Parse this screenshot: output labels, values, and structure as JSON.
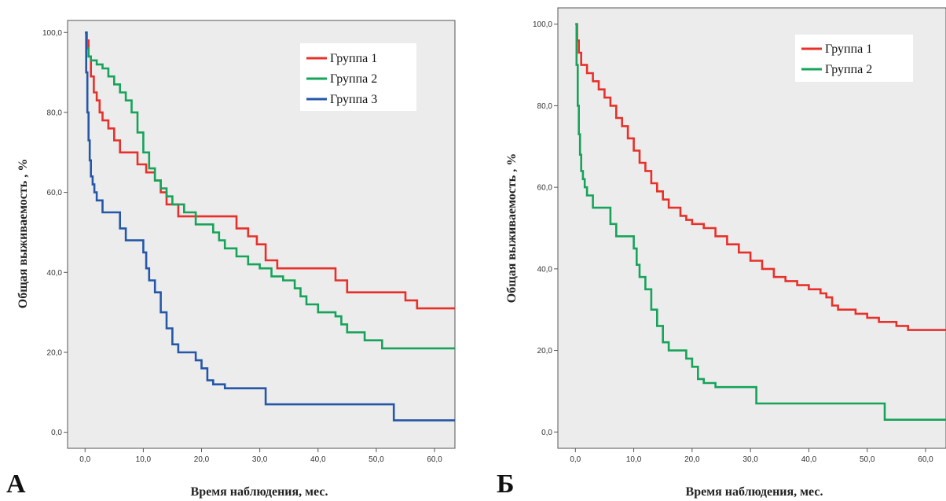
{
  "chart_data": [
    {
      "type": "line",
      "panel_label": "А",
      "xlabel": "Время наблюдения, мес.",
      "ylabel": "Общая выживаемость , %",
      "xlim": [
        -3,
        63.5
      ],
      "ylim": [
        -4,
        103
      ],
      "xticks": [
        0,
        10,
        20,
        30,
        40,
        50,
        60
      ],
      "xtick_labels": [
        "0,0",
        "10,0",
        "20,0",
        "30,0",
        "40,0",
        "50,0",
        "60,0"
      ],
      "yticks": [
        0,
        20,
        40,
        60,
        80,
        100
      ],
      "ytick_labels": [
        "0,0",
        "20,0",
        "40,0",
        "60,0",
        "80,0",
        "100,0"
      ],
      "legend_position": "top-right",
      "series": [
        {
          "name": "Группа 1",
          "color": "#e8302a",
          "x": [
            0,
            0.3,
            0.6,
            1.0,
            1.5,
            2.0,
            2.5,
            3.0,
            4.0,
            5.0,
            6.0,
            9.0,
            10.5,
            12.0,
            13.0,
            14.0,
            16.0,
            20.0,
            25.0,
            26.0,
            28.0,
            29.5,
            31.0,
            33.0,
            43.0,
            45.0,
            55.0,
            57.0,
            63.5
          ],
          "y": [
            100,
            98,
            94,
            89,
            85,
            83,
            80,
            78,
            76,
            73,
            70,
            67,
            65,
            63,
            60,
            57,
            54,
            54,
            54,
            51,
            49,
            47,
            43,
            41,
            38,
            35,
            33,
            31,
            31
          ]
        },
        {
          "name": "Группа 2",
          "color": "#16a35a",
          "x": [
            0,
            0.3,
            0.6,
            1.0,
            2.0,
            3.0,
            4.0,
            5.0,
            6.0,
            7.0,
            8.0,
            9.0,
            10.0,
            11.0,
            12.0,
            13.0,
            14.0,
            15.0,
            17.0,
            19.0,
            22.0,
            23.0,
            24.0,
            26.0,
            28.0,
            30.0,
            32.0,
            34.0,
            36.0,
            37.0,
            38.0,
            40.0,
            43.0,
            44.0,
            45.0,
            48.0,
            51.0,
            53.0,
            63.5
          ],
          "y": [
            100,
            96,
            94,
            93,
            92,
            91,
            89,
            87,
            85,
            83,
            80,
            75,
            70,
            66,
            63,
            61,
            59,
            57,
            55,
            52,
            50,
            48,
            46,
            44,
            42,
            41,
            39,
            38,
            36,
            34,
            32,
            30,
            29,
            27,
            25,
            23,
            21,
            21,
            21
          ]
        },
        {
          "name": "Группа 3",
          "color": "#2457a8",
          "x": [
            0,
            0.2,
            0.4,
            0.6,
            0.8,
            1.0,
            1.3,
            1.6,
            2.0,
            3.0,
            4.0,
            6.0,
            7.0,
            10.0,
            10.5,
            11.0,
            12.0,
            13.0,
            14.0,
            15.0,
            16.0,
            19.0,
            20.0,
            21.0,
            22.0,
            24.0,
            31.0,
            53.0,
            63.5
          ],
          "y": [
            100,
            90,
            80,
            73,
            68,
            64,
            62,
            60,
            58,
            55,
            55,
            51,
            48,
            45,
            41,
            38,
            35,
            30,
            26,
            22,
            20,
            18,
            16,
            13,
            12,
            11,
            7,
            3,
            3
          ]
        }
      ]
    },
    {
      "type": "line",
      "panel_label": "Б",
      "xlabel": "Время наблюдения, мес.",
      "ylabel": "Общая выживаемость , %",
      "xlim": [
        -3,
        63.5
      ],
      "ylim": [
        -4,
        104
      ],
      "xticks": [
        0,
        10,
        20,
        30,
        40,
        50,
        60
      ],
      "xtick_labels": [
        "0,0",
        "10,0",
        "20,0",
        "30,0",
        "40,0",
        "50,0",
        "60,0"
      ],
      "yticks": [
        0,
        20,
        40,
        60,
        80,
        100
      ],
      "ytick_labels": [
        "0,0",
        "20,0",
        "40,0",
        "60,0",
        "80,0",
        "100,0"
      ],
      "legend_position": "top-right",
      "series": [
        {
          "name": "Группа 1",
          "color": "#e8302a",
          "x": [
            0,
            0.3,
            0.6,
            1.0,
            2.0,
            3.0,
            4.0,
            5.0,
            6.0,
            7.0,
            8.0,
            9.0,
            10.0,
            11.0,
            12.0,
            13.0,
            14.0,
            15.0,
            16.0,
            18.0,
            19.0,
            20.0,
            22.0,
            24.0,
            26.0,
            28.0,
            30.0,
            32.0,
            34.0,
            36.0,
            38.0,
            40.0,
            42.0,
            43.0,
            44.0,
            45.0,
            48.0,
            50.0,
            52.0,
            55.0,
            57.0,
            63.5
          ],
          "y": [
            100,
            96,
            93,
            90,
            88,
            86,
            84,
            82,
            80,
            77,
            75,
            72,
            69,
            66,
            64,
            61,
            59,
            57,
            55,
            53,
            52,
            51,
            50,
            48,
            46,
            44,
            42,
            40,
            38,
            37,
            36,
            35,
            34,
            33,
            31,
            30,
            29,
            28,
            27,
            26,
            25,
            25
          ]
        },
        {
          "name": "Группа 2",
          "color": "#16a35a",
          "x": [
            0,
            0.2,
            0.4,
            0.6,
            0.8,
            1.0,
            1.3,
            1.6,
            2.0,
            3.0,
            4.0,
            6.0,
            7.0,
            10.0,
            10.5,
            11.0,
            12.0,
            13.0,
            14.0,
            15.0,
            16.0,
            19.0,
            20.0,
            21.0,
            22.0,
            24.0,
            31.0,
            53.0,
            63.5
          ],
          "y": [
            100,
            90,
            80,
            73,
            68,
            64,
            62,
            60,
            58,
            55,
            55,
            51,
            48,
            45,
            41,
            38,
            35,
            30,
            26,
            22,
            20,
            18,
            16,
            13,
            12,
            11,
            7,
            3,
            3
          ]
        }
      ]
    }
  ]
}
